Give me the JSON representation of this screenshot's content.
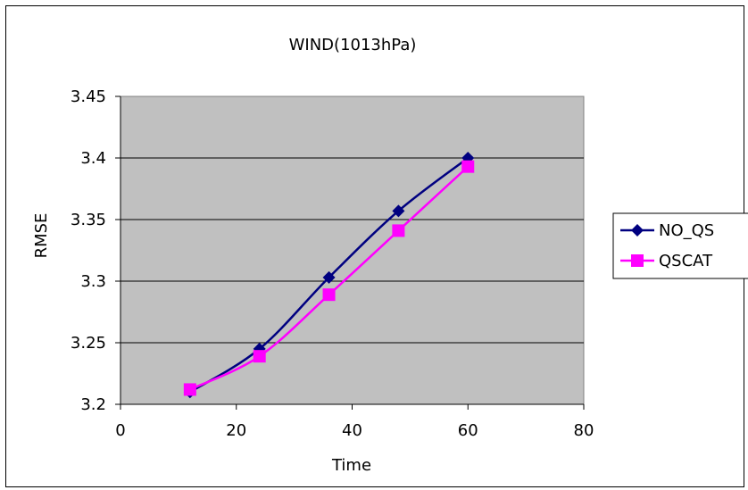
{
  "chart_data": {
    "type": "line",
    "title": "WIND(1013hPa)",
    "xlabel": "Time",
    "ylabel": "RMSE",
    "xlim": [
      0,
      80
    ],
    "ylim": [
      3.2,
      3.45
    ],
    "xticks": [
      "0",
      "20",
      "40",
      "60",
      "80"
    ],
    "yticks": [
      "3.2",
      "3.25",
      "3.3",
      "3.35",
      "3.4",
      "3.45"
    ],
    "grid": "horizontal",
    "legend_position": "right",
    "plot_background": "#c0c0c0",
    "series": [
      {
        "name": "NO_QS",
        "color": "#000080",
        "marker": "diamond",
        "x": [
          12,
          24,
          36,
          48,
          60
        ],
        "y": [
          3.21,
          3.245,
          3.303,
          3.357,
          3.4
        ]
      },
      {
        "name": "QSCAT",
        "color": "#ff00ff",
        "marker": "square",
        "x": [
          12,
          24,
          36,
          48,
          60
        ],
        "y": [
          3.212,
          3.239,
          3.289,
          3.341,
          3.393
        ]
      }
    ]
  }
}
